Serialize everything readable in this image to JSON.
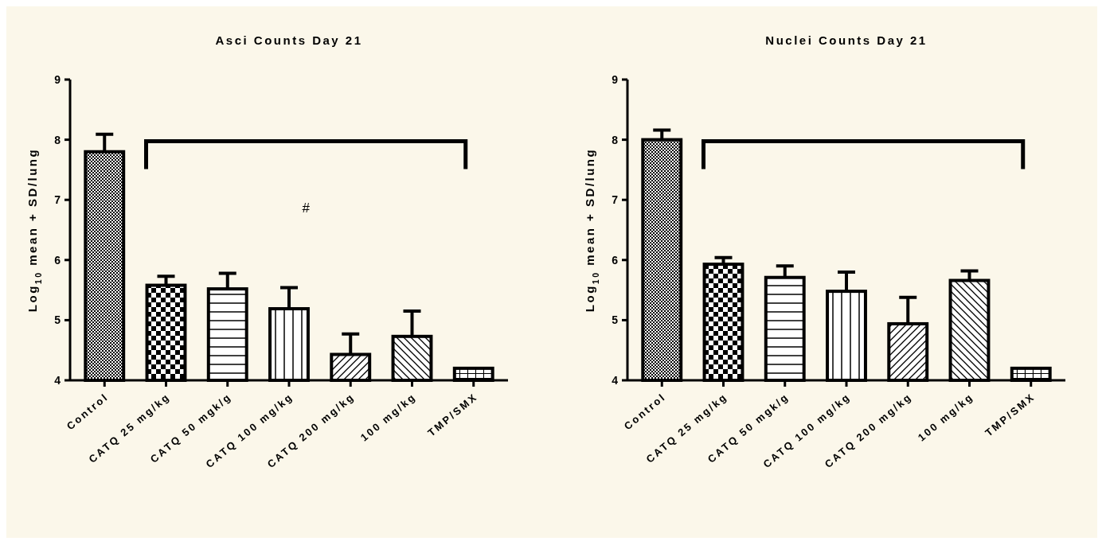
{
  "chart_data": [
    {
      "type": "bar",
      "title": "Asci Counts Day 21",
      "ylabel": "Log$_{10}$ mean + SD/lung",
      "categories": [
        "Control",
        "CATQ 25 mg/kg",
        "CATQ 50 mgk/g",
        "CATQ 100 mg/kg",
        "CATQ 200 mg/kg",
        "100 mg/kg",
        "TMP/SMX"
      ],
      "values": [
        7.8,
        5.58,
        5.52,
        5.19,
        4.43,
        4.73,
        4.2
      ],
      "errors": [
        [
          7.8,
          8.09
        ],
        [
          5.58,
          5.73
        ],
        [
          5.52,
          5.78
        ],
        [
          5.19,
          5.54
        ],
        [
          4.43,
          4.77
        ],
        [
          4.73,
          5.15
        ],
        null
      ],
      "color": "#000000",
      "ylim": [
        4,
        9
      ],
      "yticks": [
        4,
        5,
        6,
        7,
        8,
        9
      ],
      "grid": false,
      "annotations": [
        "#"
      ]
    },
    {
      "type": "bar",
      "title": "Nuclei Counts Day 21",
      "ylabel": "Log$_{10}$ mean + SD/lung",
      "categories": [
        "Control",
        "CATQ 25 mg/kg",
        "CATQ 50 mgk/g",
        "CATQ 100 mg/kg",
        "CATQ 200 mg/kg",
        "100 mg/kg",
        "TMP/SMX"
      ],
      "values": [
        8.0,
        5.93,
        5.71,
        5.48,
        4.94,
        5.66,
        4.2
      ],
      "errors": [
        [
          8.0,
          8.16
        ],
        [
          5.93,
          6.04
        ],
        [
          5.71,
          5.9
        ],
        [
          5.48,
          5.8
        ],
        [
          4.94,
          5.38
        ],
        [
          5.66,
          5.82
        ],
        null
      ],
      "color": "#000000",
      "ylim": [
        4,
        9
      ],
      "yticks": [
        4,
        5,
        6,
        7,
        8,
        9
      ],
      "grid": false
    }
  ]
}
